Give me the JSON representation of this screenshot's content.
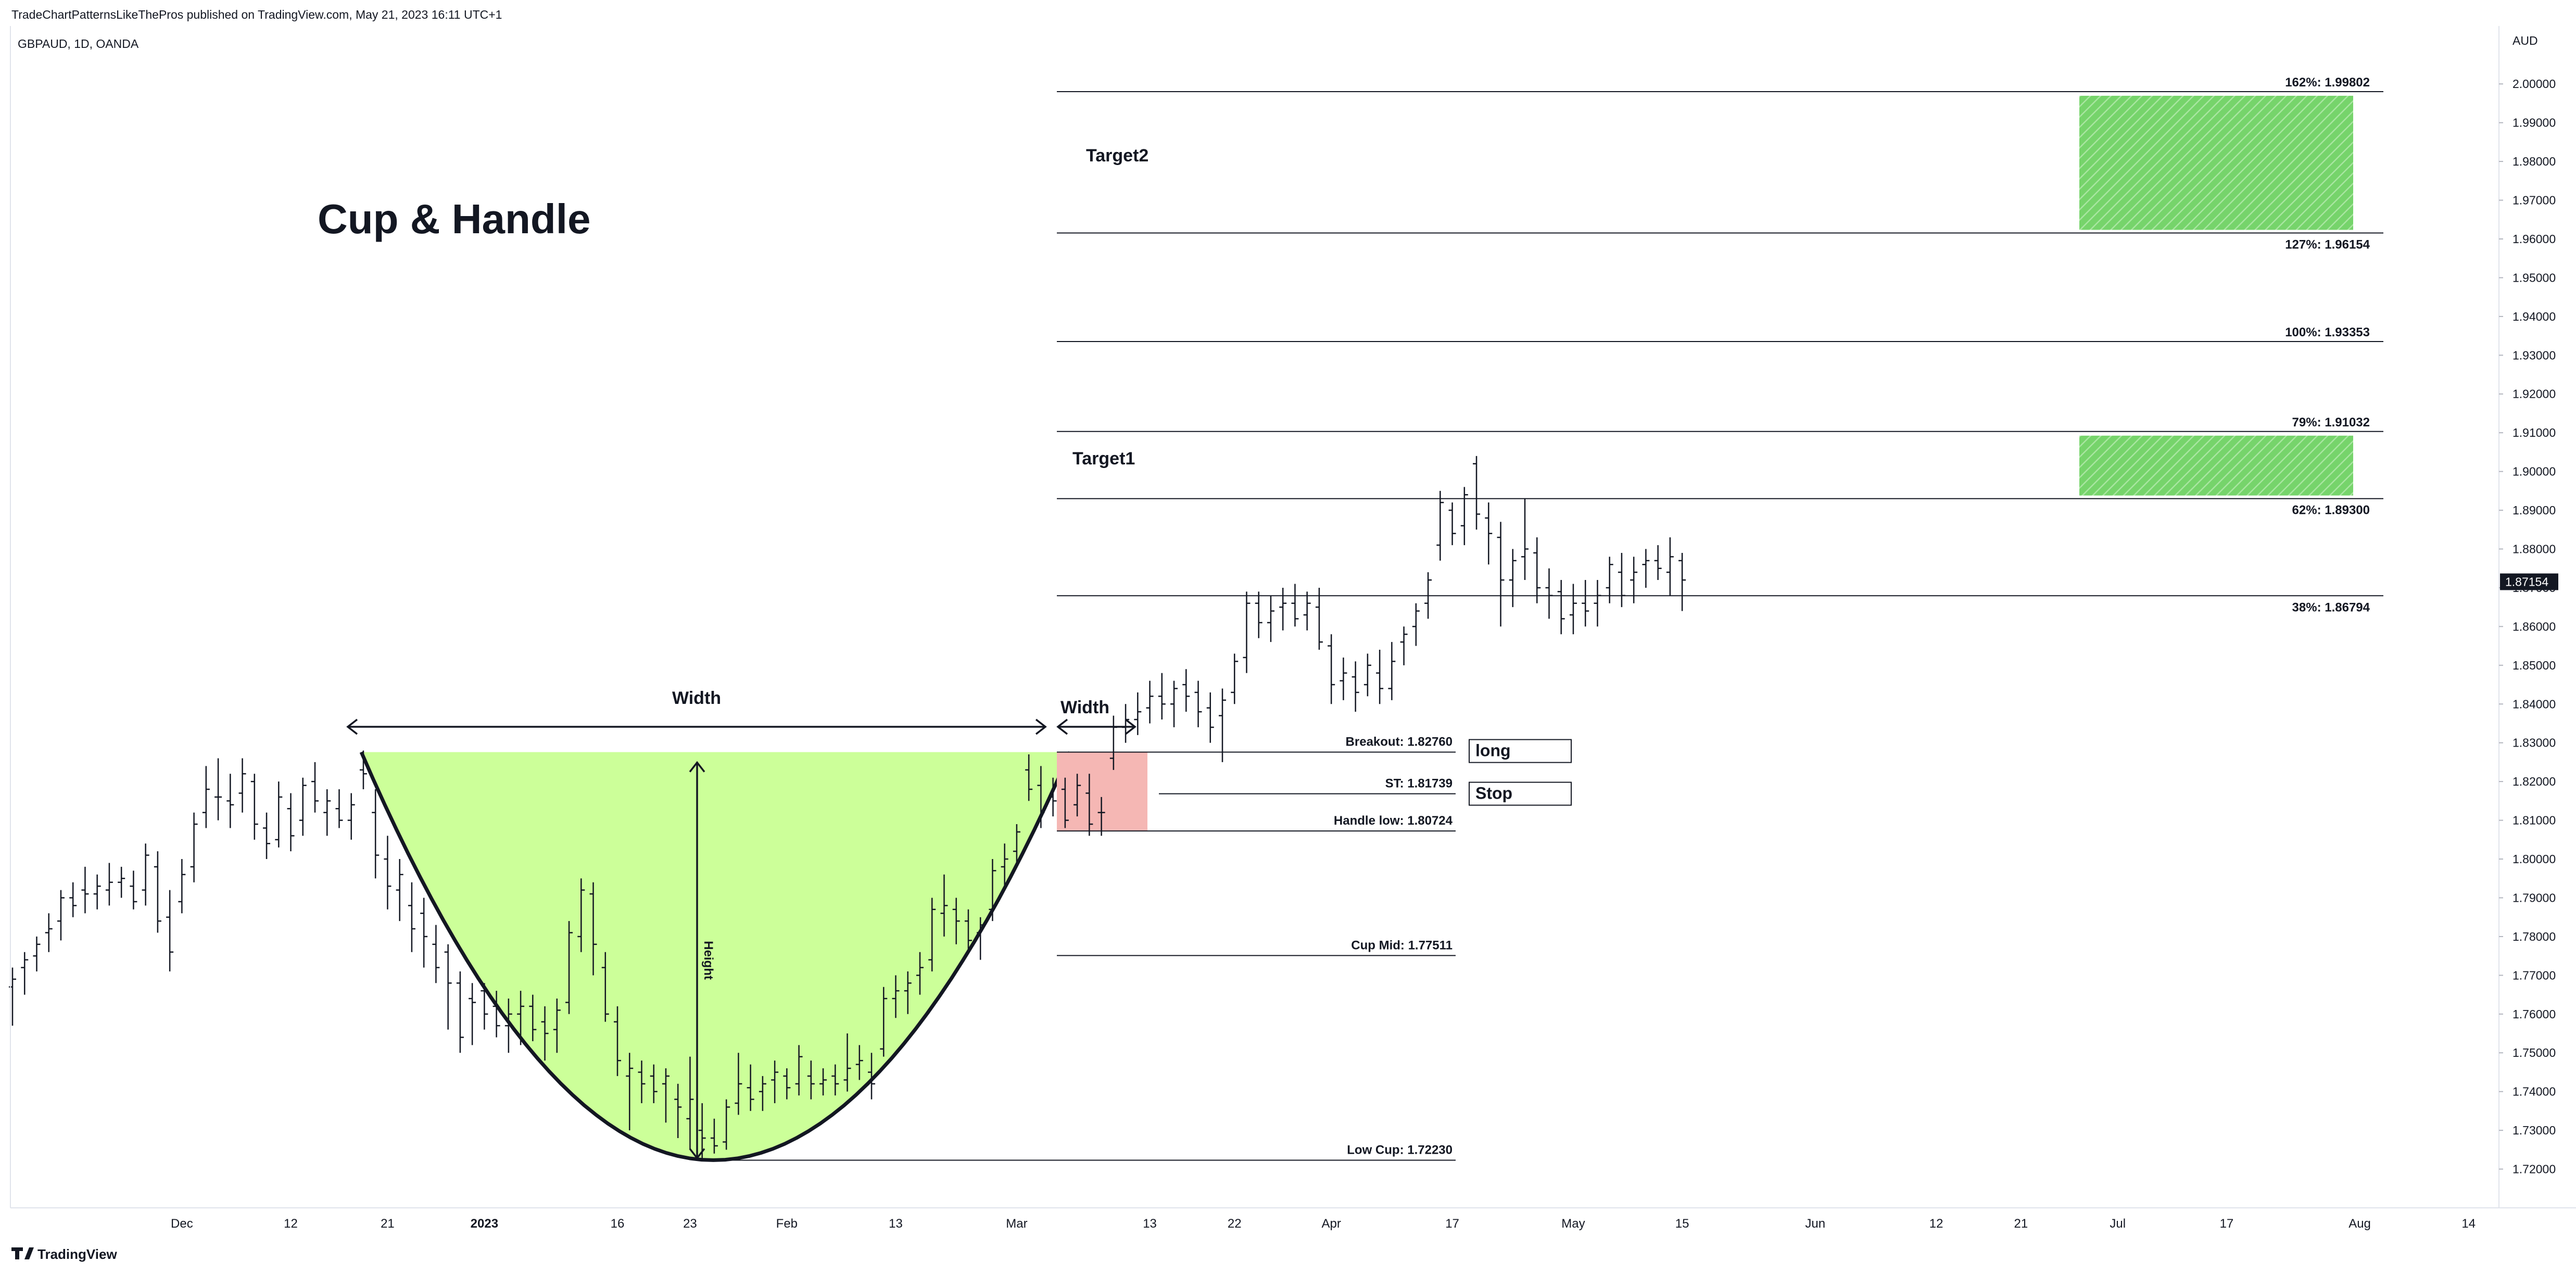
{
  "header": {
    "published": "TradeChartPatternsLikeThePros published on TradingView.com, May 21, 2023 16:11 UTC+1",
    "symbol": "GBPAUD, 1D, OANDA"
  },
  "footer": {
    "brand": "TradingView",
    "logo_icon": "tradingview-logo-icon"
  },
  "colors": {
    "cup_fill": "#ccff99",
    "handle_fill": "#f5b7b4",
    "target_fill": "#76d46b",
    "line": "#131722",
    "price_label_bg": "#131722",
    "grid_border": "#e0e3eb"
  },
  "chart_data": {
    "type": "ohlc",
    "title": "Cup & Handle",
    "currency": "AUD",
    "last_price": "1.87154",
    "ylim": [
      1.71,
      2.005
    ],
    "y_ticks": [
      "2.00000",
      "1.99000",
      "1.98000",
      "1.97000",
      "1.96000",
      "1.95000",
      "1.94000",
      "1.93000",
      "1.92000",
      "1.91000",
      "1.90000",
      "1.89000",
      "1.88000",
      "1.87000",
      "1.86000",
      "1.85000",
      "1.84000",
      "1.83000",
      "1.82000",
      "1.81000",
      "1.80000",
      "1.79000",
      "1.78000",
      "1.77000",
      "1.76000",
      "1.75000",
      "1.74000",
      "1.73000",
      "1.72000"
    ],
    "x_labels": [
      {
        "text": "Dec",
        "bar": 14
      },
      {
        "text": "12",
        "bar": 23
      },
      {
        "text": "21",
        "bar": 31
      },
      {
        "text": "2023",
        "bar": 39
      },
      {
        "text": "16",
        "bar": 50
      },
      {
        "text": "23",
        "bar": 56
      },
      {
        "text": "Feb",
        "bar": 64
      },
      {
        "text": "13",
        "bar": 73
      },
      {
        "text": "Mar",
        "bar": 83
      },
      {
        "text": "13",
        "bar": 94
      },
      {
        "text": "22",
        "bar": 101
      },
      {
        "text": "Apr",
        "bar": 109
      },
      {
        "text": "17",
        "bar": 119
      },
      {
        "text": "May",
        "bar": 129
      },
      {
        "text": "15",
        "bar": 138
      },
      {
        "text": "Jun",
        "bar": 149
      },
      {
        "text": "12",
        "bar": 159
      },
      {
        "text": "21",
        "bar": 166
      },
      {
        "text": "Jul",
        "bar": 174
      },
      {
        "text": "17",
        "bar": 183
      },
      {
        "text": "Aug",
        "bar": 194
      },
      {
        "text": "14",
        "bar": 203
      }
    ],
    "ohlc": [
      [
        1.767,
        1.772,
        1.757,
        1.769
      ],
      [
        1.772,
        1.776,
        1.765,
        1.774
      ],
      [
        1.775,
        1.78,
        1.771,
        1.778
      ],
      [
        1.781,
        1.786,
        1.776,
        1.782
      ],
      [
        1.784,
        1.792,
        1.779,
        1.79
      ],
      [
        1.79,
        1.794,
        1.785,
        1.788
      ],
      [
        1.792,
        1.798,
        1.786,
        1.791
      ],
      [
        1.791,
        1.796,
        1.787,
        1.793
      ],
      [
        1.792,
        1.799,
        1.788,
        1.794
      ],
      [
        1.794,
        1.798,
        1.79,
        1.795
      ],
      [
        1.793,
        1.797,
        1.787,
        1.789
      ],
      [
        1.792,
        1.804,
        1.788,
        1.801
      ],
      [
        1.798,
        1.802,
        1.781,
        1.784
      ],
      [
        1.785,
        1.792,
        1.771,
        1.776
      ],
      [
        1.789,
        1.8,
        1.786,
        1.796
      ],
      [
        1.798,
        1.812,
        1.794,
        1.809
      ],
      [
        1.812,
        1.824,
        1.808,
        1.818
      ],
      [
        1.816,
        1.826,
        1.81,
        1.816
      ],
      [
        1.815,
        1.822,
        1.808,
        1.814
      ],
      [
        1.817,
        1.826,
        1.812,
        1.822
      ],
      [
        1.82,
        1.822,
        1.805,
        1.809
      ],
      [
        1.808,
        1.812,
        1.8,
        1.804
      ],
      [
        1.805,
        1.82,
        1.803,
        1.816
      ],
      [
        1.813,
        1.817,
        1.802,
        1.806
      ],
      [
        1.81,
        1.821,
        1.806,
        1.819
      ],
      [
        1.82,
        1.825,
        1.812,
        1.815
      ],
      [
        1.812,
        1.818,
        1.806,
        1.815
      ],
      [
        1.813,
        1.818,
        1.808,
        1.81
      ],
      [
        1.81,
        1.817,
        1.805,
        1.814
      ],
      [
        1.823,
        1.828,
        1.818,
        1.822
      ],
      [
        1.812,
        1.818,
        1.795,
        1.801
      ],
      [
        1.8,
        1.806,
        1.787,
        1.793
      ],
      [
        1.792,
        1.8,
        1.784,
        1.796
      ],
      [
        1.788,
        1.794,
        1.776,
        1.782
      ],
      [
        1.786,
        1.79,
        1.772,
        1.78
      ],
      [
        1.778,
        1.783,
        1.768,
        1.772
      ],
      [
        1.776,
        1.778,
        1.756,
        1.768
      ],
      [
        1.768,
        1.771,
        1.75,
        1.754
      ],
      [
        1.764,
        1.768,
        1.752,
        1.763
      ],
      [
        1.766,
        1.768,
        1.756,
        1.76
      ],
      [
        1.762,
        1.766,
        1.754,
        1.757
      ],
      [
        1.757,
        1.764,
        1.75,
        1.76
      ],
      [
        1.76,
        1.766,
        1.752,
        1.762
      ],
      [
        1.762,
        1.765,
        1.753,
        1.756
      ],
      [
        1.758,
        1.762,
        1.748,
        1.755
      ],
      [
        1.756,
        1.764,
        1.75,
        1.761
      ],
      [
        1.763,
        1.784,
        1.76,
        1.781
      ],
      [
        1.78,
        1.795,
        1.776,
        1.792
      ],
      [
        1.791,
        1.794,
        1.77,
        1.778
      ],
      [
        1.772,
        1.776,
        1.758,
        1.76
      ],
      [
        1.758,
        1.762,
        1.744,
        1.748
      ],
      [
        1.744,
        1.75,
        1.73,
        1.746
      ],
      [
        1.745,
        1.748,
        1.737,
        1.742
      ],
      [
        1.744,
        1.747,
        1.737,
        1.74
      ],
      [
        1.742,
        1.746,
        1.732,
        1.744
      ],
      [
        1.738,
        1.742,
        1.728,
        1.736
      ],
      [
        1.733,
        1.749,
        1.725,
        1.738
      ],
      [
        1.73,
        1.737,
        1.722,
        1.728
      ],
      [
        1.728,
        1.733,
        1.724,
        1.726
      ],
      [
        1.727,
        1.738,
        1.725,
        1.736
      ],
      [
        1.737,
        1.75,
        1.734,
        1.742
      ],
      [
        1.741,
        1.747,
        1.735,
        1.738
      ],
      [
        1.74,
        1.744,
        1.735,
        1.742
      ],
      [
        1.743,
        1.748,
        1.737,
        1.745
      ],
      [
        1.744,
        1.746,
        1.738,
        1.741
      ],
      [
        1.742,
        1.752,
        1.739,
        1.749
      ],
      [
        1.744,
        1.748,
        1.738,
        1.742
      ],
      [
        1.742,
        1.746,
        1.739,
        1.743
      ],
      [
        1.744,
        1.747,
        1.739,
        1.742
      ],
      [
        1.743,
        1.755,
        1.74,
        1.746
      ],
      [
        1.747,
        1.752,
        1.743,
        1.748
      ],
      [
        1.745,
        1.75,
        1.738,
        1.742
      ],
      [
        1.751,
        1.767,
        1.749,
        1.764
      ],
      [
        1.764,
        1.77,
        1.759,
        1.766
      ],
      [
        1.766,
        1.771,
        1.76,
        1.768
      ],
      [
        1.77,
        1.776,
        1.765,
        1.772
      ],
      [
        1.774,
        1.79,
        1.771,
        1.787
      ],
      [
        1.786,
        1.796,
        1.78,
        1.788
      ],
      [
        1.787,
        1.79,
        1.778,
        1.784
      ],
      [
        1.784,
        1.787,
        1.776,
        1.779
      ],
      [
        1.781,
        1.785,
        1.774,
        1.783
      ],
      [
        1.787,
        1.8,
        1.784,
        1.797
      ],
      [
        1.798,
        1.804,
        1.793,
        1.8
      ],
      [
        1.802,
        1.809,
        1.799,
        1.807
      ],
      [
        1.823,
        1.827,
        1.815,
        1.818
      ],
      [
        1.819,
        1.824,
        1.808,
        1.812
      ],
      [
        1.816,
        1.821,
        1.811,
        1.815
      ],
      [
        1.818,
        1.821,
        1.808,
        1.81
      ],
      [
        1.814,
        1.822,
        1.811,
        1.819
      ],
      [
        1.817,
        1.822,
        1.806,
        1.809
      ],
      [
        1.812,
        1.816,
        1.806,
        1.812
      ],
      [
        1.826,
        1.837,
        1.823,
        1.834
      ],
      [
        1.834,
        1.84,
        1.83,
        1.836
      ],
      [
        1.836,
        1.843,
        1.832,
        1.838
      ],
      [
        1.839,
        1.846,
        1.835,
        1.842
      ],
      [
        1.842,
        1.848,
        1.836,
        1.84
      ],
      [
        1.84,
        1.846,
        1.834,
        1.844
      ],
      [
        1.845,
        1.849,
        1.838,
        1.842
      ],
      [
        1.843,
        1.846,
        1.834,
        1.838
      ],
      [
        1.839,
        1.843,
        1.83,
        1.834
      ],
      [
        1.837,
        1.844,
        1.825,
        1.841
      ],
      [
        1.843,
        1.853,
        1.84,
        1.851
      ],
      [
        1.852,
        1.869,
        1.848,
        1.866
      ],
      [
        1.866,
        1.869,
        1.857,
        1.861
      ],
      [
        1.861,
        1.868,
        1.856,
        1.864
      ],
      [
        1.865,
        1.87,
        1.859,
        1.866
      ],
      [
        1.866,
        1.871,
        1.86,
        1.862
      ],
      [
        1.863,
        1.869,
        1.859,
        1.866
      ],
      [
        1.865,
        1.87,
        1.854,
        1.856
      ],
      [
        1.855,
        1.858,
        1.84,
        1.845
      ],
      [
        1.846,
        1.852,
        1.841,
        1.848
      ],
      [
        1.847,
        1.851,
        1.838,
        1.843
      ],
      [
        1.845,
        1.853,
        1.842,
        1.85
      ],
      [
        1.848,
        1.854,
        1.84,
        1.844
      ],
      [
        1.844,
        1.856,
        1.841,
        1.851
      ],
      [
        1.856,
        1.86,
        1.85,
        1.858
      ],
      [
        1.86,
        1.866,
        1.855,
        1.864
      ],
      [
        1.866,
        1.874,
        1.862,
        1.872
      ],
      [
        1.881,
        1.895,
        1.877,
        1.892
      ],
      [
        1.89,
        1.892,
        1.881,
        1.884
      ],
      [
        1.886,
        1.896,
        1.881,
        1.894
      ],
      [
        1.902,
        1.904,
        1.885,
        1.889
      ],
      [
        1.888,
        1.892,
        1.876,
        1.884
      ],
      [
        1.883,
        1.887,
        1.86,
        1.872
      ],
      [
        1.872,
        1.88,
        1.865,
        1.877
      ],
      [
        1.878,
        1.893,
        1.872,
        1.88
      ],
      [
        1.879,
        1.883,
        1.866,
        1.87
      ],
      [
        1.87,
        1.875,
        1.862,
        1.868
      ],
      [
        1.869,
        1.872,
        1.858,
        1.862
      ],
      [
        1.863,
        1.871,
        1.858,
        1.866
      ],
      [
        1.866,
        1.872,
        1.86,
        1.864
      ],
      [
        1.866,
        1.872,
        1.86,
        1.868
      ],
      [
        1.87,
        1.878,
        1.866,
        1.876
      ],
      [
        1.874,
        1.879,
        1.865,
        1.868
      ],
      [
        1.872,
        1.878,
        1.866,
        1.874
      ],
      [
        1.876,
        1.88,
        1.87,
        1.877
      ],
      [
        1.877,
        1.881,
        1.872,
        1.875
      ],
      [
        1.874,
        1.883,
        1.868,
        1.878
      ],
      [
        1.877,
        1.879,
        1.864,
        1.872
      ]
    ],
    "fib_levels": [
      {
        "label": "162%: 1.99802",
        "price": 1.99802
      },
      {
        "label": "127%: 1.96154",
        "price": 1.96154
      },
      {
        "label": "100%: 1.93353",
        "price": 1.93353
      },
      {
        "label": "79%: 1.91032",
        "price": 1.91032
      },
      {
        "label": "62%: 1.89300",
        "price": 1.893
      },
      {
        "label": "38%: 1.86794",
        "price": 1.86794
      }
    ],
    "level_lines": [
      {
        "label": "Breakout: 1.82760",
        "price": 1.8276
      },
      {
        "label": "ST: 1.81739",
        "price": 1.81739
      },
      {
        "label": "Handle low: 1.80724",
        "price": 1.80724
      },
      {
        "label": "Cup Mid: 1.77511",
        "price": 1.77511
      },
      {
        "label": "Low Cup: 1.72230",
        "price": 1.7223
      }
    ],
    "targets": [
      {
        "label": "Target2",
        "top": 1.99802,
        "bottom": 1.96154
      },
      {
        "label": "Target1",
        "top": 1.91032,
        "bottom": 1.893
      }
    ],
    "annotations": {
      "cup_width": "Width",
      "handle_width": "Width",
      "height": "Height",
      "long_box": "long",
      "stop_box": "Stop"
    },
    "cup": {
      "left_bar": 29,
      "bottom_bar": 59,
      "right_bar": 85,
      "top": 1.8276,
      "bottom": 1.7223
    },
    "handle": {
      "start_bar": 85,
      "end_bar": 91,
      "top": 1.8276,
      "bottom": 1.80724
    }
  }
}
